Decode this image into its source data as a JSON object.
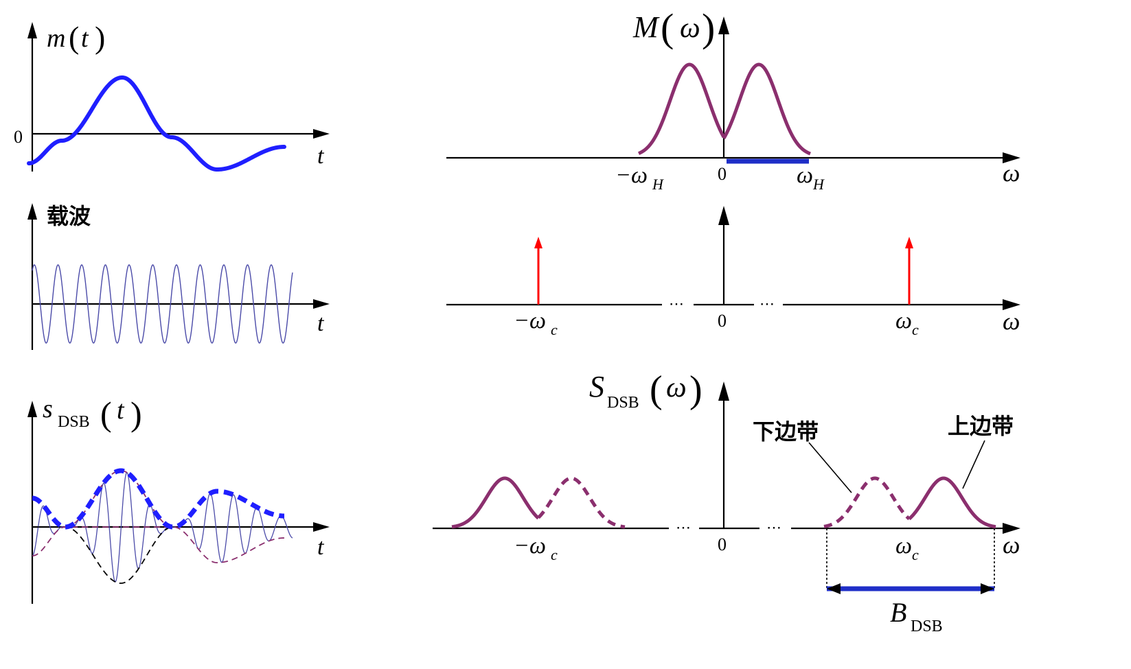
{
  "colors": {
    "signal": "#1f1fff",
    "spectrum": "#8b2f6e",
    "carrier": "#4a4aa8",
    "impulse": "#ff0000",
    "bandwidth": "#1f2fc8",
    "axis": "#000000"
  },
  "panel_time_message": {
    "ylabel": "m",
    "ylabel_arg": "t",
    "zero": "0",
    "xlabel": "t"
  },
  "panel_time_carrier": {
    "ylabel": "载波",
    "xlabel": "t"
  },
  "panel_time_dsb": {
    "ylabel_main": "s",
    "ylabel_sub": "DSB",
    "ylabel_arg": "t",
    "xlabel": "t"
  },
  "panel_freq_message": {
    "ylabel": "M",
    "ylabel_arg": "ω",
    "tick_neg": "−ω",
    "tick_neg_sub": "H",
    "tick_zero": "0",
    "tick_pos": "ω",
    "tick_pos_sub": "H",
    "xlabel": "ω"
  },
  "panel_freq_carrier": {
    "tick_neg": "−ω",
    "tick_neg_sub": "c",
    "tick_zero": "0",
    "tick_pos": "ω",
    "tick_pos_sub": "c",
    "xlabel": "ω",
    "dots": "⋯"
  },
  "panel_freq_dsb": {
    "ylabel_main": "S",
    "ylabel_sub": "DSB",
    "ylabel_arg": "ω",
    "lower_sideband": "下边带",
    "upper_sideband": "上边带",
    "tick_neg": "−ω",
    "tick_neg_sub": "c",
    "tick_zero": "0",
    "tick_pos": "ω",
    "tick_pos_sub": "c",
    "xlabel": "ω",
    "bandwidth_main": "B",
    "bandwidth_sub": "DSB",
    "dots": "⋯"
  }
}
